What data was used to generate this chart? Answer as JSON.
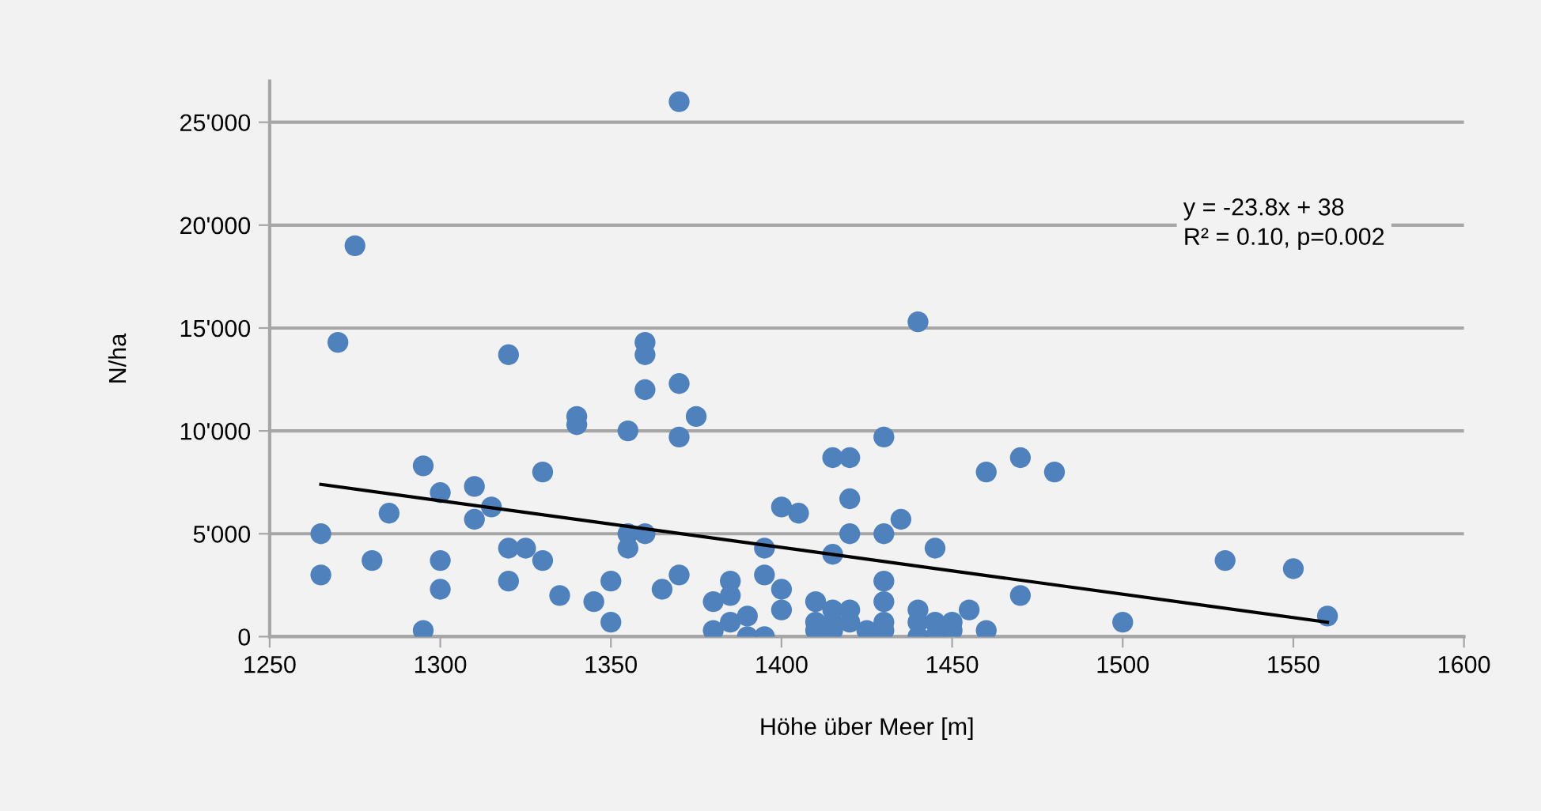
{
  "chart_data": {
    "type": "scatter",
    "xlabel": "Höhe über Meer [m]",
    "ylabel": "N/ha",
    "xlim": [
      1250,
      1600
    ],
    "xticks": [
      1250,
      1300,
      1350,
      1400,
      1450,
      1500,
      1550,
      1600
    ],
    "ylim": [
      0,
      27000
    ],
    "yticks": [
      0,
      {
        "value": 5000,
        "label": "5'000"
      },
      {
        "value": 10000,
        "label": "10'000"
      },
      {
        "value": 15000,
        "label": "15'000"
      },
      {
        "value": 20000,
        "label": "20'000"
      },
      {
        "value": 25000,
        "label": "25'000"
      }
    ],
    "grid": "y",
    "legend": false,
    "marker": "circle",
    "annotations": [
      "y = -23.8x + 38",
      "R² = 0.10, p=0.002"
    ],
    "series": [
      {
        "color": "#4f81bd",
        "x": [
          1265,
          1265,
          1270,
          1275,
          1280,
          1285,
          1295,
          1295,
          1300,
          1300,
          1300,
          1310,
          1310,
          1315,
          1320,
          1320,
          1320,
          1325,
          1330,
          1330,
          1335,
          1340,
          1340,
          1345,
          1350,
          1350,
          1355,
          1355,
          1355,
          1360,
          1360,
          1360,
          1360,
          1365,
          1370,
          1370,
          1370,
          1370,
          1375,
          1380,
          1380,
          1385,
          1385,
          1385,
          1390,
          1390,
          1395,
          1395,
          1395,
          1400,
          1400,
          1400,
          1405,
          1410,
          1410,
          1410,
          1415,
          1415,
          1415,
          1415,
          1415,
          1420,
          1420,
          1420,
          1420,
          1420,
          1425,
          1430,
          1430,
          1430,
          1430,
          1430,
          1430,
          1435,
          1440,
          1440,
          1440,
          1440,
          1445,
          1445,
          1445,
          1450,
          1450,
          1455,
          1460,
          1460,
          1470,
          1470,
          1480,
          1500,
          1530,
          1550,
          1560
        ],
        "values": [
          5000,
          3000,
          14300,
          19000,
          3700,
          6000,
          8300,
          300,
          7000,
          3700,
          2300,
          7300,
          5700,
          6300,
          13700,
          4300,
          2700,
          4300,
          8000,
          3700,
          2000,
          10700,
          10300,
          1700,
          2700,
          700,
          10000,
          5000,
          4300,
          14300,
          13700,
          12000,
          5000,
          2300,
          26000,
          12300,
          9700,
          3000,
          10700,
          1700,
          300,
          2700,
          2000,
          700,
          1000,
          0,
          4300,
          3000,
          0,
          6300,
          2300,
          1300,
          6000,
          1700,
          700,
          300,
          8700,
          4000,
          1300,
          700,
          300,
          8700,
          6700,
          5000,
          1300,
          700,
          300,
          9700,
          5000,
          2700,
          1700,
          700,
          300,
          5700,
          15300,
          1300,
          700,
          0,
          4300,
          700,
          0,
          700,
          300,
          1300,
          8000,
          300,
          8700,
          2000,
          8000,
          700,
          3700,
          3300,
          1000
        ]
      },
      {
        "type": "line",
        "color": "#000000",
        "x": [
          1265,
          1560
        ],
        "values": [
          7400,
          700
        ],
        "marker": "none"
      }
    ]
  }
}
